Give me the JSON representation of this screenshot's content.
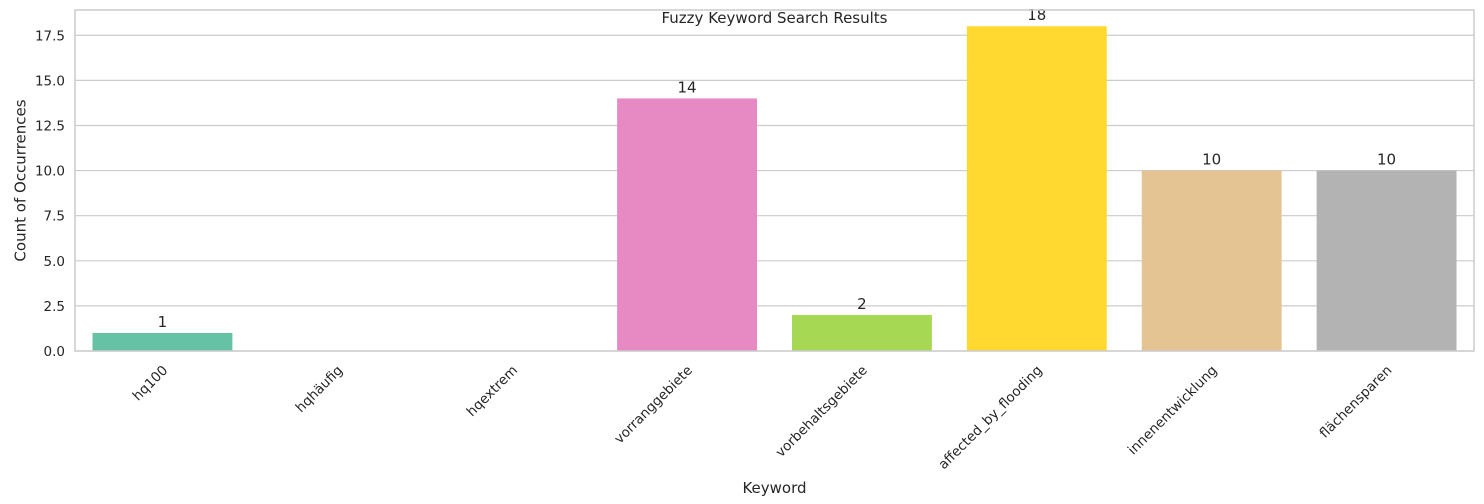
{
  "chart_data": {
    "type": "bar",
    "title": "Fuzzy Keyword Search Results",
    "xlabel": "Keyword",
    "ylabel": "Count of Occurrences",
    "categories": [
      "hq100",
      "hqhäufig",
      "hqextrem",
      "vorranggebiete",
      "vorbehaltsgebiete",
      "affected_by_flooding",
      "innenentwicklung",
      "flächensparen"
    ],
    "values": [
      1,
      0,
      0,
      14,
      2,
      18,
      10,
      10
    ],
    "value_labels": [
      "1",
      "",
      "",
      "14",
      "2",
      "18",
      "10",
      "10"
    ],
    "colors": [
      "#66c2a5",
      "#fc8d62",
      "#8da0cb",
      "#e78ac3",
      "#a6d854",
      "#ffd92f",
      "#e5c494",
      "#b3b3b3"
    ],
    "ylim": [
      0,
      18.9
    ],
    "yticks": [
      0.0,
      2.5,
      5.0,
      7.5,
      10.0,
      12.5,
      15.0,
      17.5
    ],
    "ytick_labels": [
      "0.0",
      "2.5",
      "5.0",
      "7.5",
      "10.0",
      "12.5",
      "15.0",
      "17.5"
    ],
    "grid": true,
    "legend": false
  }
}
